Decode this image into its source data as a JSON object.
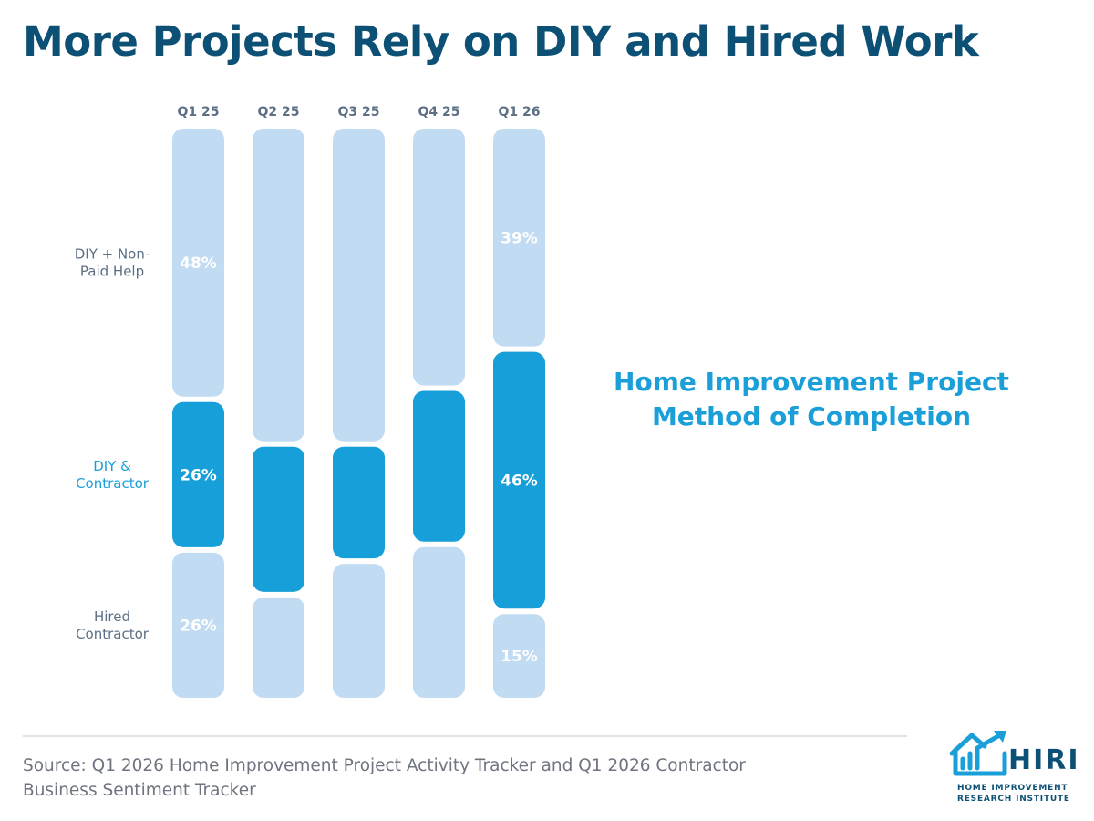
{
  "title": "More Projects Rely on DIY and Hired Work",
  "side_title": {
    "line1": "Home Improvement Project",
    "line2": "Method of Completion"
  },
  "source": {
    "line1": "Source: Q1 2026 Home Improvement Project Activity Tracker and Q1 2026 Contractor",
    "line2": "Business Sentiment Tracker"
  },
  "logo": {
    "word": "HIRI",
    "sub_line1": "HOME IMPROVEMENT",
    "sub_line2": "RESEARCH INSTITUTE",
    "icon": "house-growth-arrow-icon"
  },
  "colors": {
    "title": "#0d5075",
    "side_title": "#1a9fd9",
    "light_segment": "#c1dbf2",
    "dark_segment": "#169fd8",
    "category_label": "#5c6f84",
    "highlight_label": "#1a9fd9",
    "segment_text": "#ffffff",
    "logo": "#1a9fd9",
    "logo_text": "#0d5075"
  },
  "chart_data": {
    "type": "bar",
    "stacked": true,
    "orientation": "vertical",
    "normalized_to_percent": true,
    "categories": [
      "Q1 25",
      "Q2 25",
      "Q3 25",
      "Q4 25",
      "Q1 26"
    ],
    "series": [
      {
        "name": "DIY + Non-Paid Help",
        "label_lines": [
          "DIY + Non-",
          "Paid Help"
        ],
        "values": [
          48,
          56,
          56,
          46,
          39
        ],
        "data_labels": [
          "48%",
          "",
          "",
          "",
          "39%"
        ]
      },
      {
        "name": "DIY & Contractor",
        "label_lines": [
          "DIY &",
          "Contractor"
        ],
        "values": [
          26,
          26,
          20,
          27,
          46
        ],
        "data_labels": [
          "26%",
          "",
          "",
          "",
          "46%"
        ]
      },
      {
        "name": "Hired Contractor",
        "label_lines": [
          "Hired",
          "Contractor"
        ],
        "values": [
          26,
          18,
          24,
          27,
          15
        ],
        "data_labels": [
          "26%",
          "",
          "",
          "",
          "15%"
        ]
      }
    ],
    "ylim": [
      0,
      100
    ],
    "grid": false,
    "legend": "left-side row labels"
  }
}
